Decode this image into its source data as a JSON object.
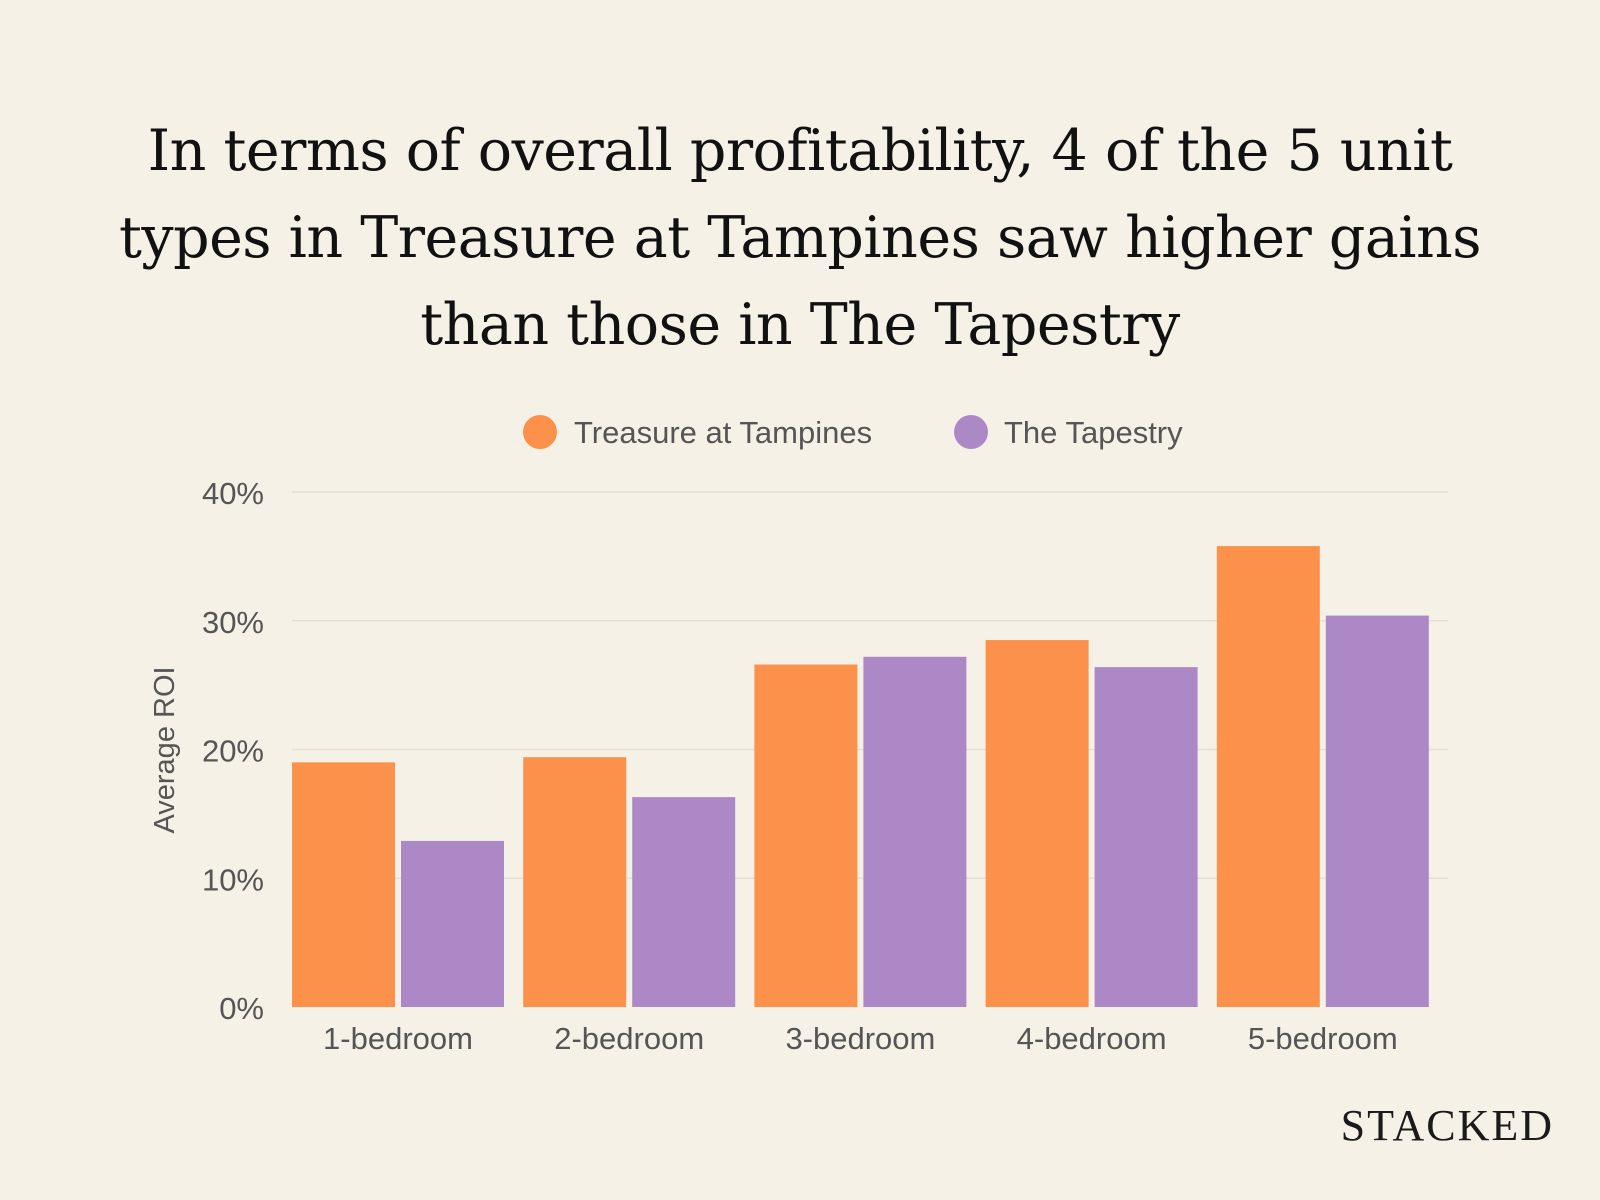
{
  "title": "In terms of overall profitability, 4 of the 5 unit types in Treasure at Tampines saw higher gains than those in The Tapestry",
  "brand": "STACKED",
  "colors": {
    "background": "#f6f1e6",
    "series_1": "#fb914a",
    "series_2": "#ac89c6",
    "grid": "#e5ded2",
    "axis_text": "#555555"
  },
  "chart_data": {
    "type": "bar",
    "title": "In terms of overall profitability, 4 of the 5 unit types in Treasure at Tampines saw higher gains than those in The Tapestry",
    "xlabel": "",
    "ylabel": "Average ROI",
    "ylim": [
      0,
      40
    ],
    "yticks": [
      0,
      10,
      20,
      30,
      40
    ],
    "ytick_labels": [
      "0%",
      "10%",
      "20%",
      "30%",
      "40%"
    ],
    "grid": true,
    "legend_position": "top-center",
    "categories": [
      "1-bedroom",
      "2-bedroom",
      "3-bedroom",
      "4-bedroom",
      "5-bedroom"
    ],
    "series": [
      {
        "name": "Treasure at Tampines",
        "color": "#fb914a",
        "values": [
          19.0,
          19.4,
          26.6,
          28.5,
          35.8
        ]
      },
      {
        "name": "The Tapestry",
        "color": "#ac89c6",
        "values": [
          12.9,
          16.3,
          27.2,
          26.4,
          30.4
        ]
      }
    ]
  }
}
